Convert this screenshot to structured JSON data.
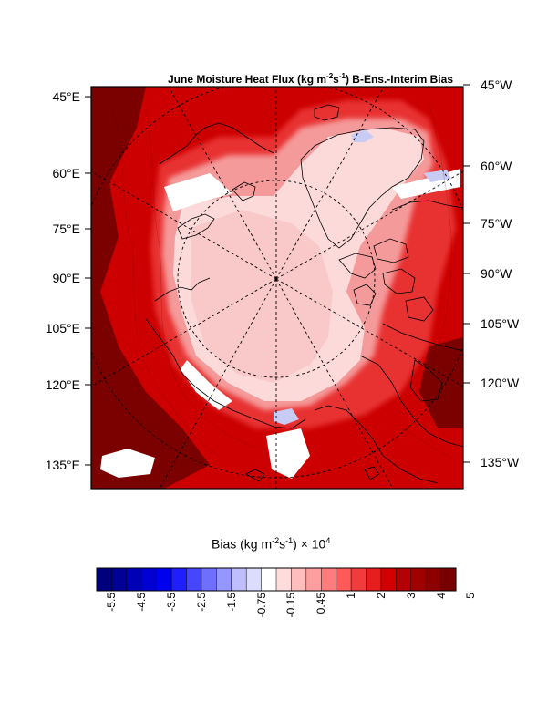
{
  "map": {
    "title_prefix": "June Moisture Heat Flux (kg m",
    "title_sup1": "-2",
    "title_mid": "s",
    "title_sup2": "-1",
    "title_suffix": ") B-Ens.-Interim Bias",
    "left_labels": [
      "45°E",
      "60°E",
      "75°E",
      "90°E",
      "105°E",
      "120°E",
      "135°E"
    ],
    "right_labels": [
      "45°W",
      "60°W",
      "75°W",
      "90°W",
      "105°W",
      "120°W",
      "135°W"
    ],
    "colors": {
      "dark_red": "#7b0000",
      "red": "#cc0000",
      "mid_red": "#e83030",
      "light_red": "#f59a9a",
      "pale_pink": "#fcdada",
      "ice_pink": "#f9c9c9",
      "pale_blue": "#c8ccf5"
    }
  },
  "colorbar": {
    "title_prefix": "Bias (kg m",
    "title_sup1": "-2",
    "title_mid": "s",
    "title_sup2": "-1",
    "title_suffix": ") × 10",
    "title_sup3": "4",
    "tick_labels": [
      "-5.5",
      "-4.5",
      "-3.5",
      "-2.5",
      "-1.5",
      "-0.75",
      "-0.15",
      "0.45",
      "1",
      "2",
      "3",
      "4",
      "5"
    ],
    "colors": [
      "#00007d",
      "#000096",
      "#0000b4",
      "#0000d2",
      "#0000f0",
      "#1e1eff",
      "#4646ff",
      "#6e6eff",
      "#9696ff",
      "#bebeff",
      "#dcdcff",
      "#ffffff",
      "#ffdcdc",
      "#ffbebe",
      "#ff9e9e",
      "#ff7c7c",
      "#ff5a5a",
      "#f03c3c",
      "#e61e1e",
      "#d20000",
      "#b40000",
      "#a00000",
      "#8c0000",
      "#780000"
    ]
  }
}
